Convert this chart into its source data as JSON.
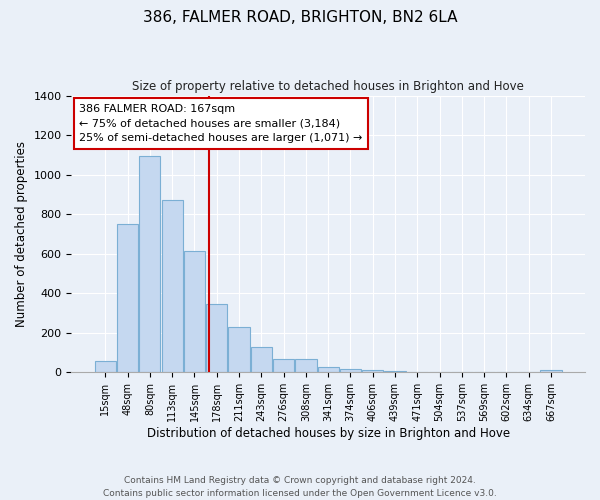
{
  "title": "386, FALMER ROAD, BRIGHTON, BN2 6LA",
  "subtitle": "Size of property relative to detached houses in Brighton and Hove",
  "xlabel": "Distribution of detached houses by size in Brighton and Hove",
  "ylabel": "Number of detached properties",
  "footer_line1": "Contains HM Land Registry data © Crown copyright and database right 2024.",
  "footer_line2": "Contains public sector information licensed under the Open Government Licence v3.0.",
  "bar_labels": [
    "15sqm",
    "48sqm",
    "80sqm",
    "113sqm",
    "145sqm",
    "178sqm",
    "211sqm",
    "243sqm",
    "276sqm",
    "308sqm",
    "341sqm",
    "374sqm",
    "406sqm",
    "439sqm",
    "471sqm",
    "504sqm",
    "537sqm",
    "569sqm",
    "602sqm",
    "634sqm",
    "667sqm"
  ],
  "bar_values": [
    55,
    750,
    1095,
    870,
    615,
    345,
    228,
    130,
    65,
    68,
    25,
    18,
    10,
    5,
    2,
    0,
    0,
    0,
    0,
    0,
    10
  ],
  "bar_color": "#c5d8f0",
  "bar_edge_color": "#7bafd4",
  "bg_color": "#eaf0f8",
  "ylim": [
    0,
    1400
  ],
  "yticks": [
    0,
    200,
    400,
    600,
    800,
    1000,
    1200,
    1400
  ],
  "annotation_label": "386 FALMER ROAD: 167sqm",
  "annotation_line1": "← 75% of detached houses are smaller (3,184)",
  "annotation_line2": "25% of semi-detached houses are larger (1,071) →",
  "vline_color": "#cc0000",
  "annotation_box_edge": "#cc0000",
  "vline_pos": 4.67
}
